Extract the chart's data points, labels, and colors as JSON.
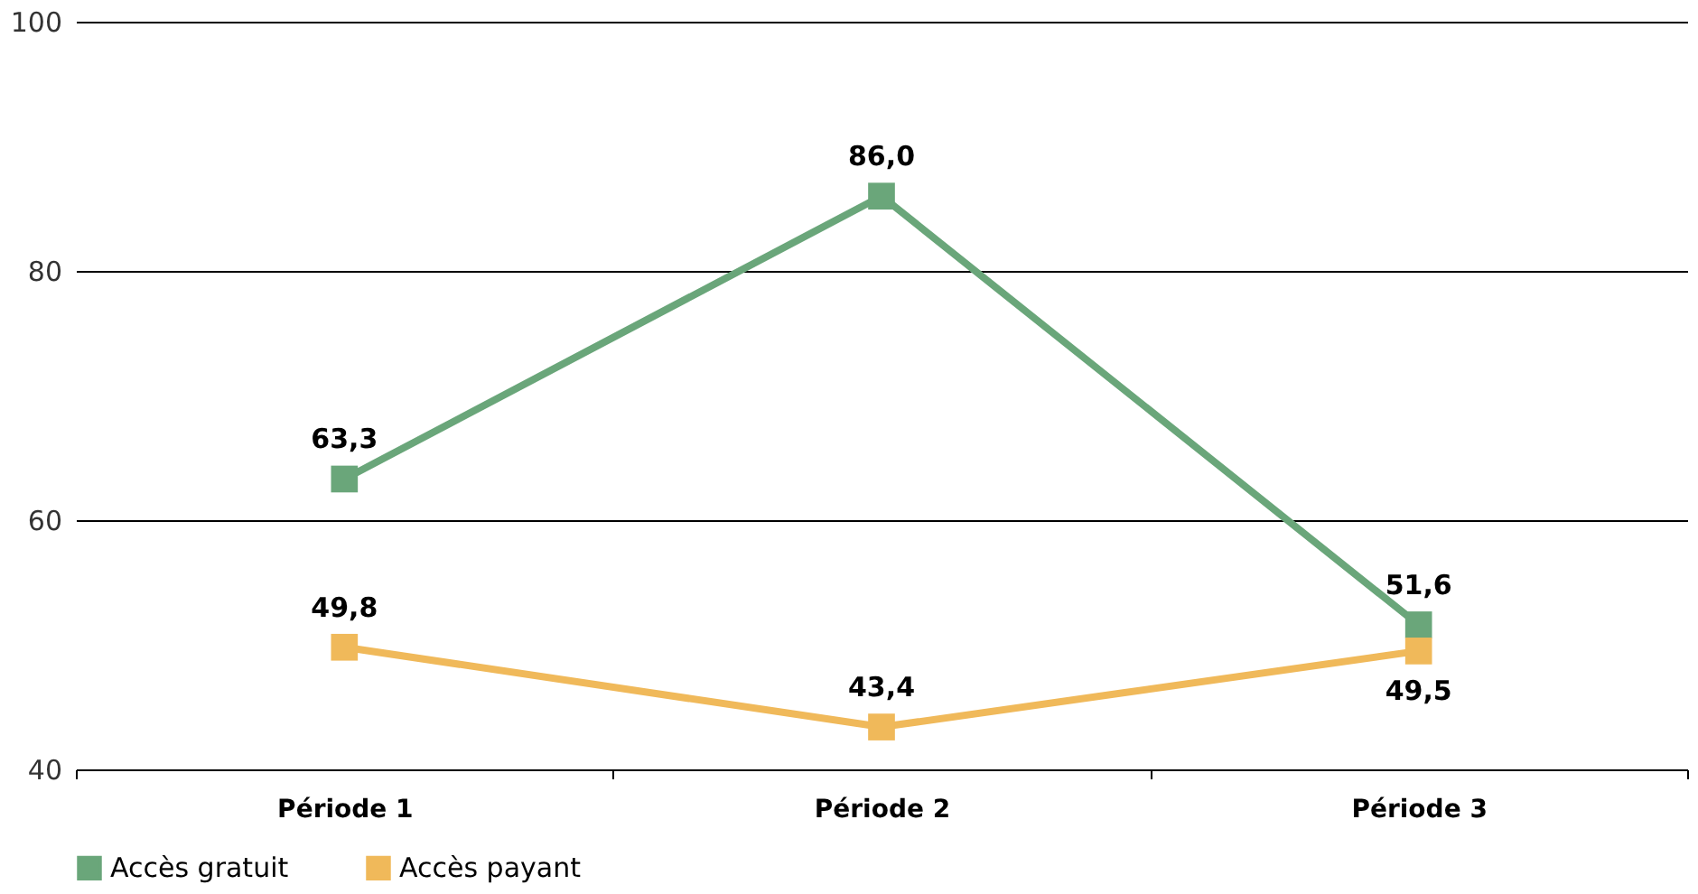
{
  "chart_data": {
    "type": "line",
    "categories": [
      "Période 1",
      "Période 2",
      "Période 3"
    ],
    "series": [
      {
        "name": "Accès gratuit",
        "color": "#6aa67a",
        "values": [
          63.3,
          86.0,
          51.6
        ],
        "value_labels": [
          "63,3",
          "86,0",
          "51,6"
        ]
      },
      {
        "name": "Accès payant",
        "color": "#f0b95a",
        "values": [
          49.8,
          43.4,
          49.5
        ],
        "value_labels": [
          "49,8",
          "43,4",
          "49,5"
        ]
      }
    ],
    "ylim": [
      40,
      100
    ],
    "yticks": [
      40,
      60,
      80,
      100
    ],
    "grid": "y",
    "legend": "bottom",
    "marker": "square",
    "line_style": "solid"
  }
}
